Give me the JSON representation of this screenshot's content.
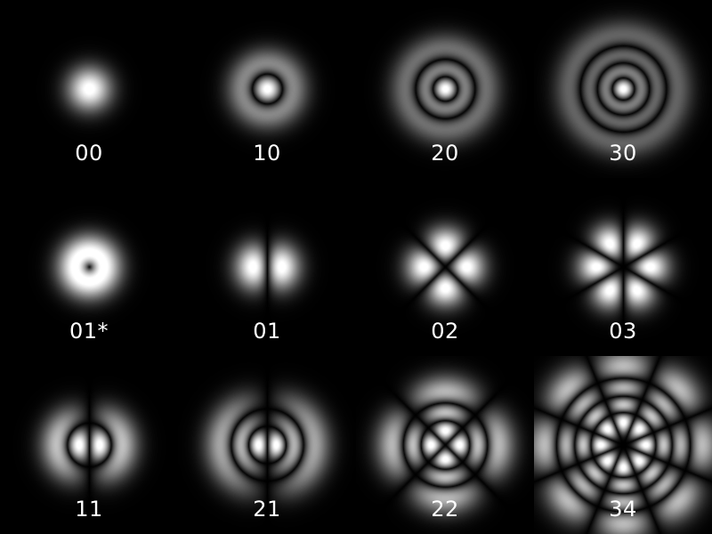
{
  "modes": [
    {
      "label": "00",
      "p": 0,
      "l": 0,
      "donut": false
    },
    {
      "label": "10",
      "p": 1,
      "l": 0,
      "donut": false
    },
    {
      "label": "20",
      "p": 2,
      "l": 0,
      "donut": false
    },
    {
      "label": "30",
      "p": 3,
      "l": 0,
      "donut": false
    },
    {
      "label": "01*",
      "p": 0,
      "l": 1,
      "donut": true
    },
    {
      "label": "01",
      "p": 0,
      "l": 1,
      "donut": false
    },
    {
      "label": "02",
      "p": 0,
      "l": 2,
      "donut": false
    },
    {
      "label": "03",
      "p": 0,
      "l": 3,
      "donut": false
    },
    {
      "label": "11",
      "p": 1,
      "l": 1,
      "donut": false
    },
    {
      "label": "21",
      "p": 2,
      "l": 1,
      "donut": false
    },
    {
      "label": "22",
      "p": 2,
      "l": 2,
      "donut": false
    },
    {
      "label": "34",
      "p": 3,
      "l": 4,
      "donut": false
    }
  ],
  "colors": {
    "background": "#000000",
    "label": "#ffffff"
  }
}
